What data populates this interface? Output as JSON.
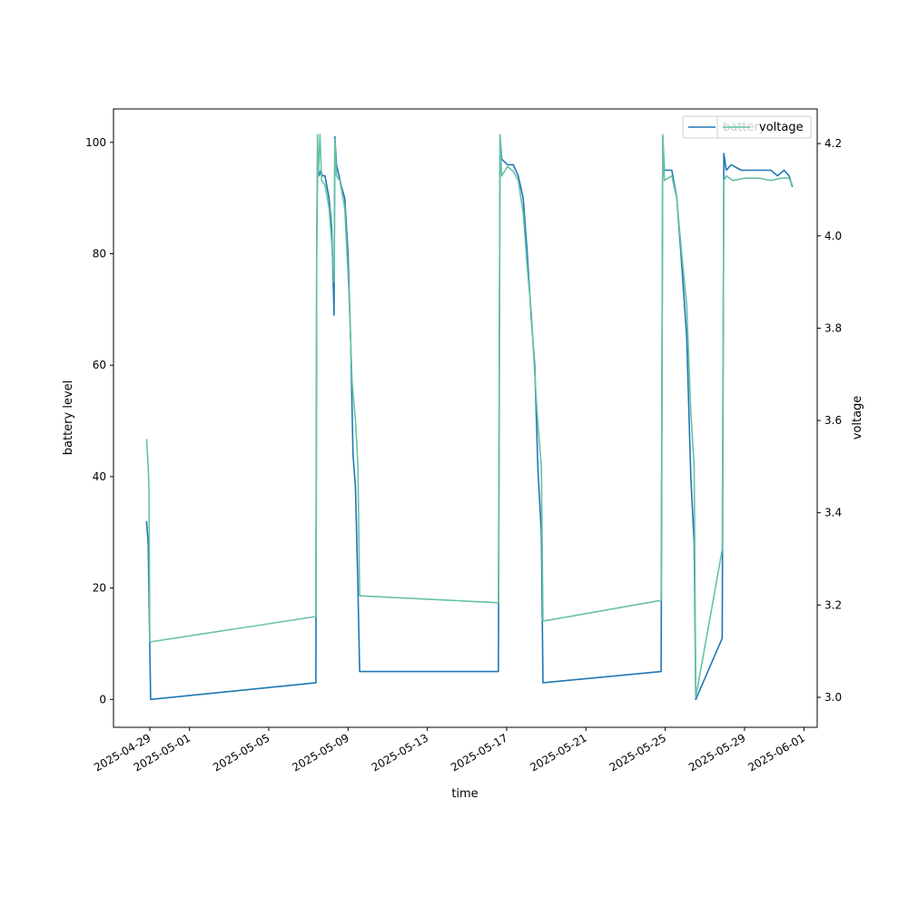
{
  "chart_data": {
    "type": "line",
    "xlabel": "time",
    "ylabel": "battery level",
    "y2label": "voltage",
    "xlim": [
      "2025-04-27T04:00",
      "2025-06-01T16:00"
    ],
    "ylim": [
      -5,
      106
    ],
    "y2lim": [
      2.935,
      4.275
    ],
    "xticks": [
      "2025-04-29",
      "2025-05-01",
      "2025-05-05",
      "2025-05-09",
      "2025-05-13",
      "2025-05-17",
      "2025-05-21",
      "2025-05-25",
      "2025-05-29",
      "2025-06-01"
    ],
    "yticks": [
      0,
      20,
      40,
      60,
      80,
      100
    ],
    "y2ticks": [
      3.0,
      3.2,
      3.4,
      3.6,
      3.8,
      4.0,
      4.2
    ],
    "y2tick_labels": [
      "3.0",
      "3.2",
      "3.4",
      "3.6",
      "3.8",
      "4.0",
      "4.2"
    ],
    "legend_placement": "upper-right",
    "legend_overlap": true,
    "grid": false,
    "series": [
      {
        "name": "battery",
        "axis": "left",
        "color": "#1f77b4",
        "points": [
          [
            "2025-04-28T20:00",
            32
          ],
          [
            "2025-04-28T22:00",
            28
          ],
          [
            "2025-04-29T01:00",
            0
          ],
          [
            "2025-05-07T09:00",
            3
          ],
          [
            "2025-05-07T10:00",
            80
          ],
          [
            "2025-05-07T11:00",
            96
          ],
          [
            "2025-05-07T13:00",
            94
          ],
          [
            "2025-05-07T15:00",
            95
          ],
          [
            "2025-05-07T17:00",
            94
          ],
          [
            "2025-05-07T20:00",
            94
          ],
          [
            "2025-05-08T01:00",
            90
          ],
          [
            "2025-05-08T04:00",
            85
          ],
          [
            "2025-05-08T06:00",
            75
          ],
          [
            "2025-05-08T07:00",
            69
          ],
          [
            "2025-05-08T08:00",
            101
          ],
          [
            "2025-05-08T10:00",
            96
          ],
          [
            "2025-05-08T13:00",
            94
          ],
          [
            "2025-05-08T16:00",
            92
          ],
          [
            "2025-05-08T20:00",
            90
          ],
          [
            "2025-05-09T00:00",
            80
          ],
          [
            "2025-05-09T03:00",
            65
          ],
          [
            "2025-05-09T06:00",
            44
          ],
          [
            "2025-05-09T09:00",
            38
          ],
          [
            "2025-05-09T12:00",
            20
          ],
          [
            "2025-05-09T14:00",
            5
          ],
          [
            "2025-05-16T14:00",
            5
          ],
          [
            "2025-05-16T16:00",
            101
          ],
          [
            "2025-05-16T18:00",
            97
          ],
          [
            "2025-05-17T01:00",
            96
          ],
          [
            "2025-05-17T08:00",
            96
          ],
          [
            "2025-05-17T14:00",
            94
          ],
          [
            "2025-05-17T20:00",
            90
          ],
          [
            "2025-05-18T01:00",
            80
          ],
          [
            "2025-05-18T06:00",
            68
          ],
          [
            "2025-05-18T10:00",
            60
          ],
          [
            "2025-05-18T14:00",
            41
          ],
          [
            "2025-05-18T18:00",
            30
          ],
          [
            "2025-05-18T20:00",
            3
          ],
          [
            "2025-05-24T19:00",
            5
          ],
          [
            "2025-05-24T21:00",
            101
          ],
          [
            "2025-05-24T23:00",
            95
          ],
          [
            "2025-05-25T08:00",
            95
          ],
          [
            "2025-05-25T14:00",
            90
          ],
          [
            "2025-05-25T20:00",
            78
          ],
          [
            "2025-05-26T02:00",
            65
          ],
          [
            "2025-05-26T07:00",
            40
          ],
          [
            "2025-05-26T11:00",
            28
          ],
          [
            "2025-05-26T13:00",
            0
          ],
          [
            "2025-05-27T21:00",
            11
          ],
          [
            "2025-05-27T23:00",
            98
          ],
          [
            "2025-05-28T02:00",
            95
          ],
          [
            "2025-05-28T08:00",
            96
          ],
          [
            "2025-05-28T20:00",
            95
          ],
          [
            "2025-05-29T12:00",
            95
          ],
          [
            "2025-05-30T08:00",
            95
          ],
          [
            "2025-05-30T16:00",
            94
          ],
          [
            "2025-05-31T00:00",
            95
          ],
          [
            "2025-05-31T06:00",
            94
          ],
          [
            "2025-05-31T10:00",
            92
          ]
        ]
      },
      {
        "name": "voltage",
        "axis": "right",
        "color": "#66c2a5",
        "points": [
          [
            "2025-04-28T20:00",
            3.56
          ],
          [
            "2025-04-28T22:00",
            3.5
          ],
          [
            "2025-04-28T23:00",
            3.45
          ],
          [
            "2025-04-29T00:00",
            3.12
          ],
          [
            "2025-05-07T09:00",
            3.175
          ],
          [
            "2025-05-07T10:00",
            4.0
          ],
          [
            "2025-05-07T11:00",
            4.22
          ],
          [
            "2025-05-07T12:00",
            4.13
          ],
          [
            "2025-05-07T14:00",
            4.22
          ],
          [
            "2025-05-07T16:00",
            4.12
          ],
          [
            "2025-05-07T20:00",
            4.11
          ],
          [
            "2025-05-08T01:00",
            4.06
          ],
          [
            "2025-05-08T04:00",
            3.99
          ],
          [
            "2025-05-08T06:00",
            3.93
          ],
          [
            "2025-05-08T07:00",
            3.9
          ],
          [
            "2025-05-08T08:00",
            4.21
          ],
          [
            "2025-05-08T10:00",
            4.13
          ],
          [
            "2025-05-08T14:00",
            4.12
          ],
          [
            "2025-05-08T20:00",
            4.06
          ],
          [
            "2025-05-09T01:00",
            3.88
          ],
          [
            "2025-05-09T05:00",
            3.68
          ],
          [
            "2025-05-09T09:00",
            3.6
          ],
          [
            "2025-05-09T12:00",
            3.5
          ],
          [
            "2025-05-09T14:00",
            3.22
          ],
          [
            "2025-05-16T14:00",
            3.205
          ],
          [
            "2025-05-16T16:00",
            4.22
          ],
          [
            "2025-05-16T18:00",
            4.13
          ],
          [
            "2025-05-17T01:00",
            4.15
          ],
          [
            "2025-05-17T08:00",
            4.14
          ],
          [
            "2025-05-17T14:00",
            4.12
          ],
          [
            "2025-05-17T20:00",
            4.05
          ],
          [
            "2025-05-18T01:00",
            3.93
          ],
          [
            "2025-05-18T06:00",
            3.83
          ],
          [
            "2025-05-18T10:00",
            3.7
          ],
          [
            "2025-05-18T14:00",
            3.59
          ],
          [
            "2025-05-18T18:00",
            3.5
          ],
          [
            "2025-05-18T20:00",
            3.165
          ],
          [
            "2025-05-24T19:00",
            3.21
          ],
          [
            "2025-05-24T21:00",
            4.22
          ],
          [
            "2025-05-24T23:00",
            4.12
          ],
          [
            "2025-05-25T08:00",
            4.13
          ],
          [
            "2025-05-25T14:00",
            4.08
          ],
          [
            "2025-05-25T20:00",
            3.96
          ],
          [
            "2025-05-26T02:00",
            3.85
          ],
          [
            "2025-05-26T07:00",
            3.62
          ],
          [
            "2025-05-26T11:00",
            3.5
          ],
          [
            "2025-05-26T13:00",
            3.0
          ],
          [
            "2025-05-27T21:00",
            3.32
          ],
          [
            "2025-05-27T23:00",
            4.12
          ],
          [
            "2025-05-28T02:00",
            4.13
          ],
          [
            "2025-05-28T10:00",
            4.12
          ],
          [
            "2025-05-29T00:00",
            4.125
          ],
          [
            "2025-05-29T18:00",
            4.125
          ],
          [
            "2025-05-30T08:00",
            4.12
          ],
          [
            "2025-05-30T20:00",
            4.125
          ],
          [
            "2025-05-31T06:00",
            4.125
          ],
          [
            "2025-05-31T10:00",
            4.11
          ]
        ]
      }
    ]
  }
}
